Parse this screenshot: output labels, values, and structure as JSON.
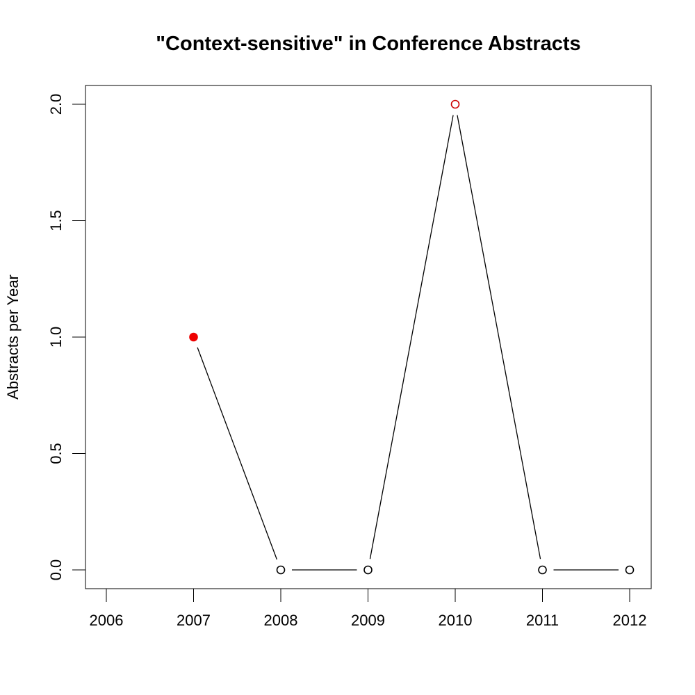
{
  "chart_data": {
    "type": "line",
    "title": "\"Context-sensitive\" in Conference Abstracts",
    "xlabel": "",
    "ylabel": "Abstracts per Year",
    "x": [
      2007,
      2008,
      2009,
      2010,
      2011,
      2012
    ],
    "values": [
      1,
      0,
      0,
      2,
      0,
      0
    ],
    "xlim": [
      2006,
      2012
    ],
    "ylim": [
      0,
      2
    ],
    "x_ticks": [
      "2006",
      "2007",
      "2008",
      "2009",
      "2010",
      "2011",
      "2012"
    ],
    "y_ticks": [
      "0.0",
      "0.5",
      "1.0",
      "1.5",
      "2.0"
    ],
    "grid": false,
    "highlighted_points": [
      {
        "x": 2007,
        "y": 1,
        "marker": "filled",
        "color": "#ee0000"
      },
      {
        "x": 2010,
        "y": 2,
        "marker": "open",
        "color": "#cc0000"
      }
    ],
    "default_marker": {
      "marker": "open",
      "color": "#000000"
    },
    "line_color": "#000000"
  }
}
